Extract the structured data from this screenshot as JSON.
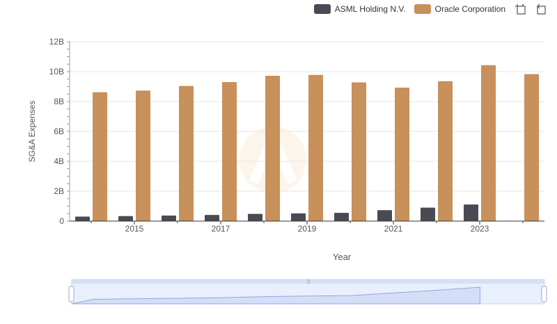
{
  "chart_data": {
    "type": "bar",
    "x": [
      2014,
      2015,
      2016,
      2017,
      2018,
      2019,
      2020,
      2021,
      2022,
      2023,
      2024
    ],
    "x_tick_labels": [
      "2015",
      "2017",
      "2019",
      "2021",
      "2023"
    ],
    "xlabel": "Year",
    "ylabel": "SG&A Expenses",
    "ylim": [
      0,
      12000000000
    ],
    "y_tick_labels": [
      "0",
      "2B",
      "4B",
      "6B",
      "8B",
      "10B",
      "12B"
    ],
    "grid": true,
    "legend_position": "top-right",
    "series": [
      {
        "name": "ASML Holding N.V.",
        "color": "#4a4a55",
        "values": [
          300000000,
          340000000,
          370000000,
          410000000,
          480000000,
          520000000,
          550000000,
          730000000,
          900000000,
          1110000000,
          null
        ]
      },
      {
        "name": "Oracle Corporation",
        "color": "#c8905a",
        "values": [
          8620000000,
          8730000000,
          9040000000,
          9300000000,
          9720000000,
          9780000000,
          9280000000,
          8930000000,
          9360000000,
          10430000000,
          9830000000
        ]
      }
    ]
  },
  "toolbar": {
    "zoom_icon": "zoom-select-icon",
    "reset_icon": "reset-zoom-icon"
  },
  "range_slider": {
    "handle_icon": "drag-handle-icon"
  }
}
